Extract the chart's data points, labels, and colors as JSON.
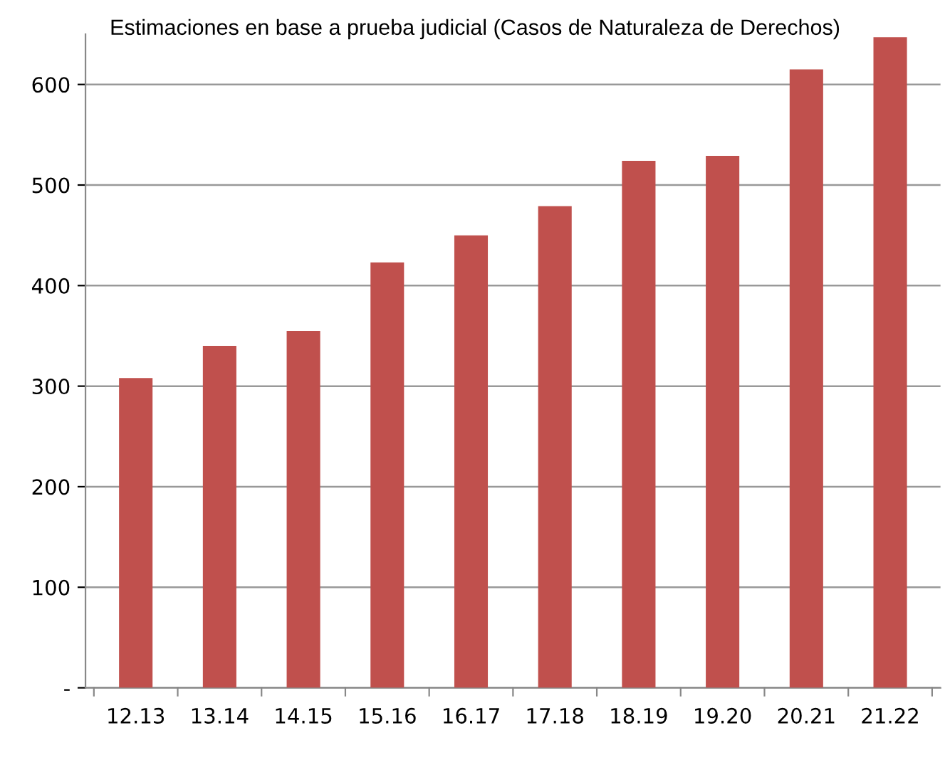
{
  "chart_data": {
    "type": "bar",
    "title": "Estimaciones en base a prueba judicial (Casos de Naturaleza de Derechos)",
    "categories": [
      "12.13",
      "13.14",
      "14.15",
      "15.16",
      "16.17",
      "17.18",
      "18.19",
      "19.20",
      "20.21",
      "21.22"
    ],
    "values": [
      308,
      340,
      355,
      423,
      450,
      479,
      524,
      529,
      615,
      647
    ],
    "color": "#c0504d",
    "ylim": [
      0,
      650
    ],
    "yticks": [
      {
        "value": 0,
        "label": "-"
      },
      100,
      200,
      300,
      400,
      500,
      600
    ],
    "grid": "y",
    "legend": false
  }
}
